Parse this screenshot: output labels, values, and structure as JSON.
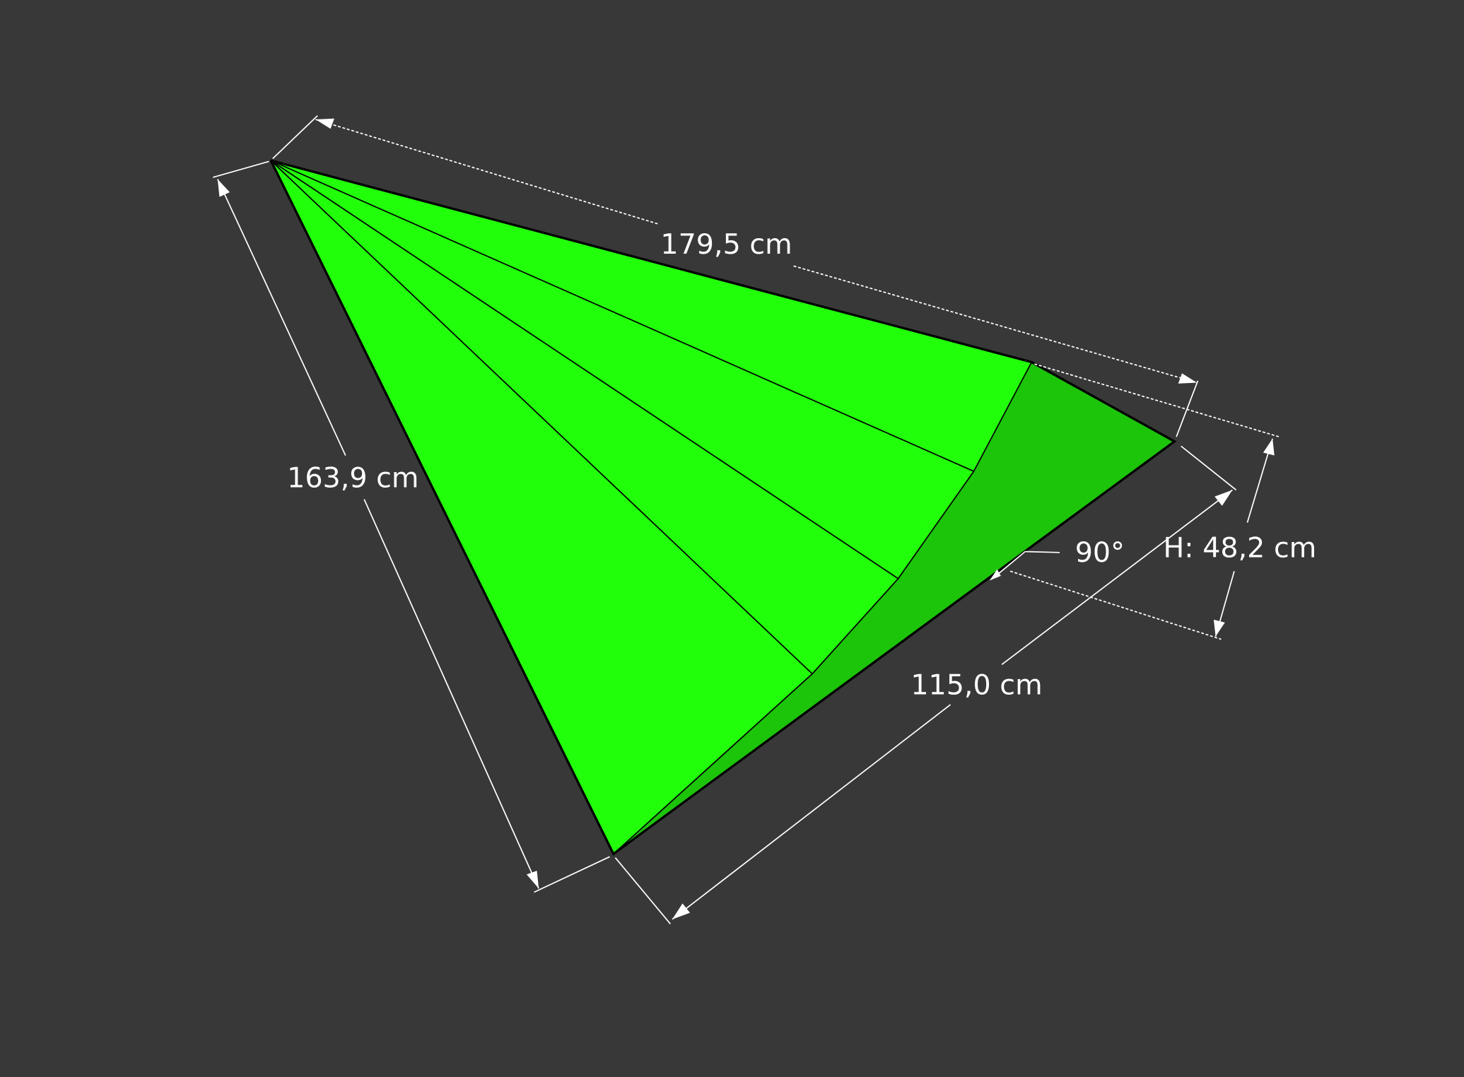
{
  "colors": {
    "background": "#383838",
    "face_light": "#22ff0a",
    "face_dark": "#1cc40a",
    "dimension": "#ffffff"
  },
  "dimensions": {
    "top_edge": "179,5 cm",
    "left_edge": "163,9 cm",
    "bottom_edge": "115,0 cm",
    "height": "H: 48,2 cm",
    "angle": "90°"
  }
}
